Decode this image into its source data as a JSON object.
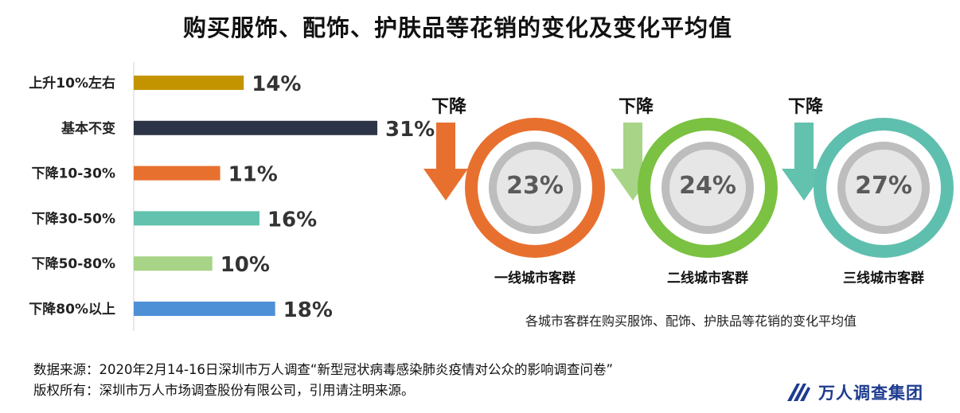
{
  "title": "购买服饰、配饰、护肤品等花销的变化及变化平均值",
  "chart_data": [
    {
      "type": "bar",
      "orientation": "horizontal",
      "categories": [
        "上升10%左右",
        "基本不变",
        "下降10-30%",
        "下降30-50%",
        "下降50-80%",
        "下降80%以上"
      ],
      "values": [
        14,
        31,
        11,
        16,
        10,
        18
      ],
      "value_labels": [
        "14%",
        "31%",
        "11%",
        "16%",
        "10%",
        "18%"
      ],
      "colors": [
        "#c49400",
        "#2b3547",
        "#e8702f",
        "#62c2ad",
        "#a7d486",
        "#4e90d6"
      ],
      "xlim": [
        0,
        31
      ]
    },
    {
      "type": "pie",
      "groups": [
        {
          "label": "一线城市客群",
          "trend": "下降",
          "value": 23,
          "value_label": "23%",
          "color": "#e8702f",
          "arrow_color": "#e8702f"
        },
        {
          "label": "二线城市客群",
          "trend": "下降",
          "value": 24,
          "value_label": "24%",
          "color": "#7bc142",
          "arrow_color": "#a7d486"
        },
        {
          "label": "三线城市客群",
          "trend": "下降",
          "value": 27,
          "value_label": "27%",
          "color": "#5fbfae",
          "arrow_color": "#62c2ad"
        }
      ],
      "caption": "各城市客群在购买服饰、配饰、护肤品等花销的变化平均值"
    }
  ],
  "footer": {
    "source": "数据来源：2020年2月14-16日深圳市万人调查“新型冠状病毒感染肺炎疫情对公众的影响调查问卷”",
    "copyright": "版权所有：深圳市万人市场调查股份有限公司，引用请注明来源。"
  },
  "logo": {
    "text": "万人调查集团",
    "color": "#1d3b8f"
  }
}
